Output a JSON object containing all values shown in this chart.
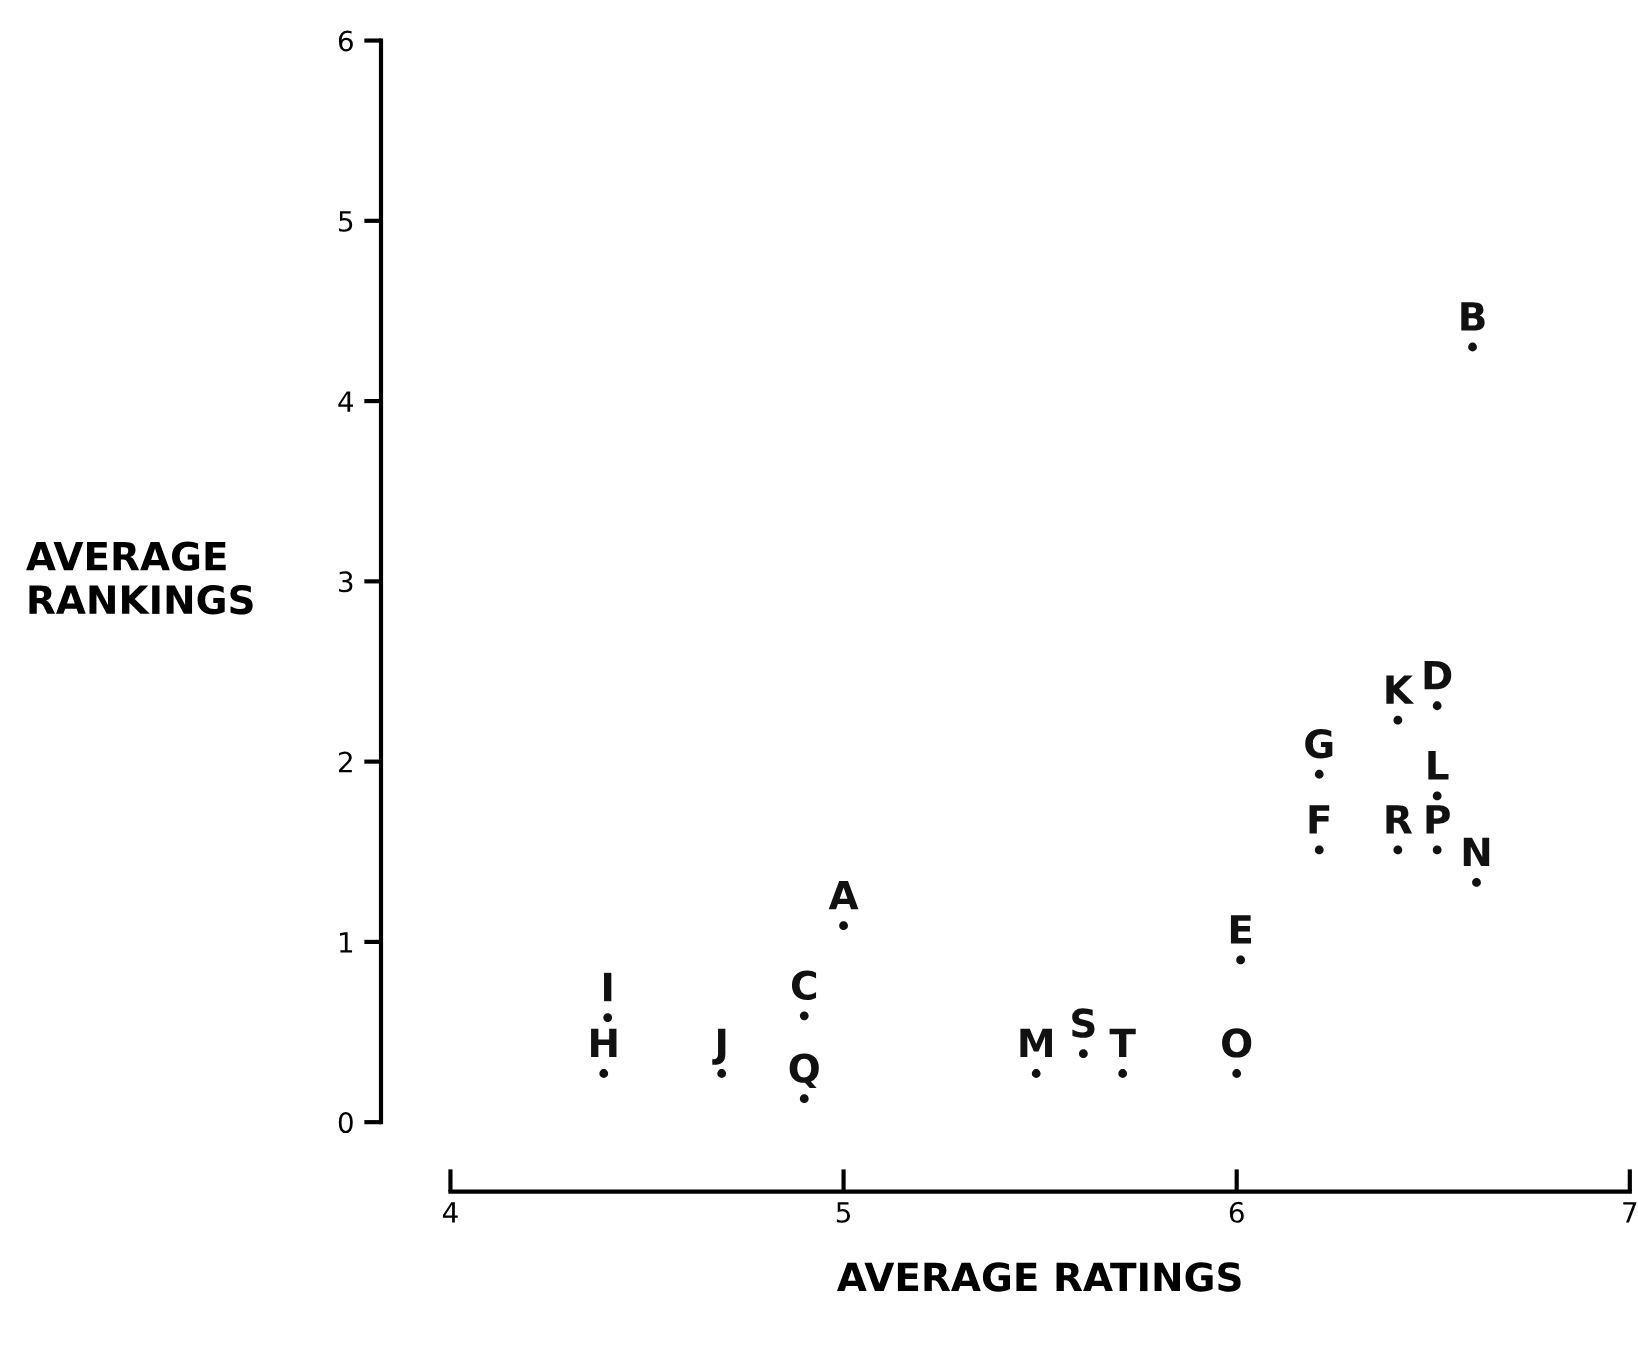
{
  "chart_data": {
    "type": "scatter",
    "xlabel": "AVERAGE RATINGS",
    "ylabel": "AVERAGE\nRANKINGS",
    "xlim": [
      4,
      7
    ],
    "xticks": [
      4,
      5,
      6,
      7
    ],
    "ylim": [
      0,
      6
    ],
    "yticks": [
      0,
      1,
      2,
      3,
      4,
      5,
      6
    ],
    "grid": false,
    "marker": "circle",
    "series": [
      {
        "color": "#111111",
        "x": [
          5.0,
          6.6,
          4.9,
          6.51,
          6.01,
          6.21,
          6.21,
          4.39,
          4.4,
          4.69,
          6.41,
          6.51,
          5.49,
          6.61,
          6.0,
          6.51,
          4.9,
          6.41,
          5.61,
          5.71
        ],
        "values": [
          1.09,
          4.3,
          0.59,
          2.31,
          0.9,
          1.51,
          1.93,
          0.27,
          0.58,
          0.27,
          2.23,
          1.81,
          0.27,
          1.33,
          0.27,
          1.51,
          0.13,
          1.51,
          0.38,
          0.27
        ],
        "value_labels": [
          "A",
          "B",
          "C",
          "D",
          "E",
          "F",
          "G",
          "H",
          "I",
          "J",
          "K",
          "L",
          "M",
          "N",
          "O",
          "P",
          "Q",
          "R",
          "S",
          "T"
        ]
      }
    ]
  }
}
